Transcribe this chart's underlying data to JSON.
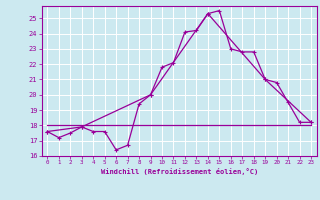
{
  "xlabel": "Windchill (Refroidissement éolien,°C)",
  "background_color": "#cce9f0",
  "grid_color": "#ffffff",
  "line_color": "#990099",
  "xlim": [
    -0.5,
    23.5
  ],
  "ylim": [
    16,
    25.8
  ],
  "yticks": [
    16,
    17,
    18,
    19,
    20,
    21,
    22,
    23,
    24,
    25
  ],
  "xticks": [
    0,
    1,
    2,
    3,
    4,
    5,
    6,
    7,
    8,
    9,
    10,
    11,
    12,
    13,
    14,
    15,
    16,
    17,
    18,
    19,
    20,
    21,
    22,
    23
  ],
  "series1_x": [
    0,
    1,
    2,
    3,
    4,
    5,
    6,
    7,
    8,
    9,
    10,
    11,
    12,
    13,
    14,
    15,
    16,
    17,
    18,
    19,
    20,
    21,
    22,
    23
  ],
  "series1_y": [
    17.6,
    17.2,
    17.5,
    17.9,
    17.6,
    17.6,
    16.4,
    16.7,
    19.4,
    20.0,
    21.8,
    22.1,
    24.1,
    24.2,
    25.3,
    25.5,
    23.0,
    22.8,
    22.8,
    21.0,
    20.8,
    19.5,
    18.2,
    18.2
  ],
  "series2_x": [
    0,
    3,
    9,
    14,
    19,
    23
  ],
  "series2_y": [
    17.6,
    17.9,
    20.0,
    25.3,
    21.0,
    18.2
  ],
  "series3_x": [
    0,
    23
  ],
  "series3_y": [
    18.0,
    18.0
  ]
}
